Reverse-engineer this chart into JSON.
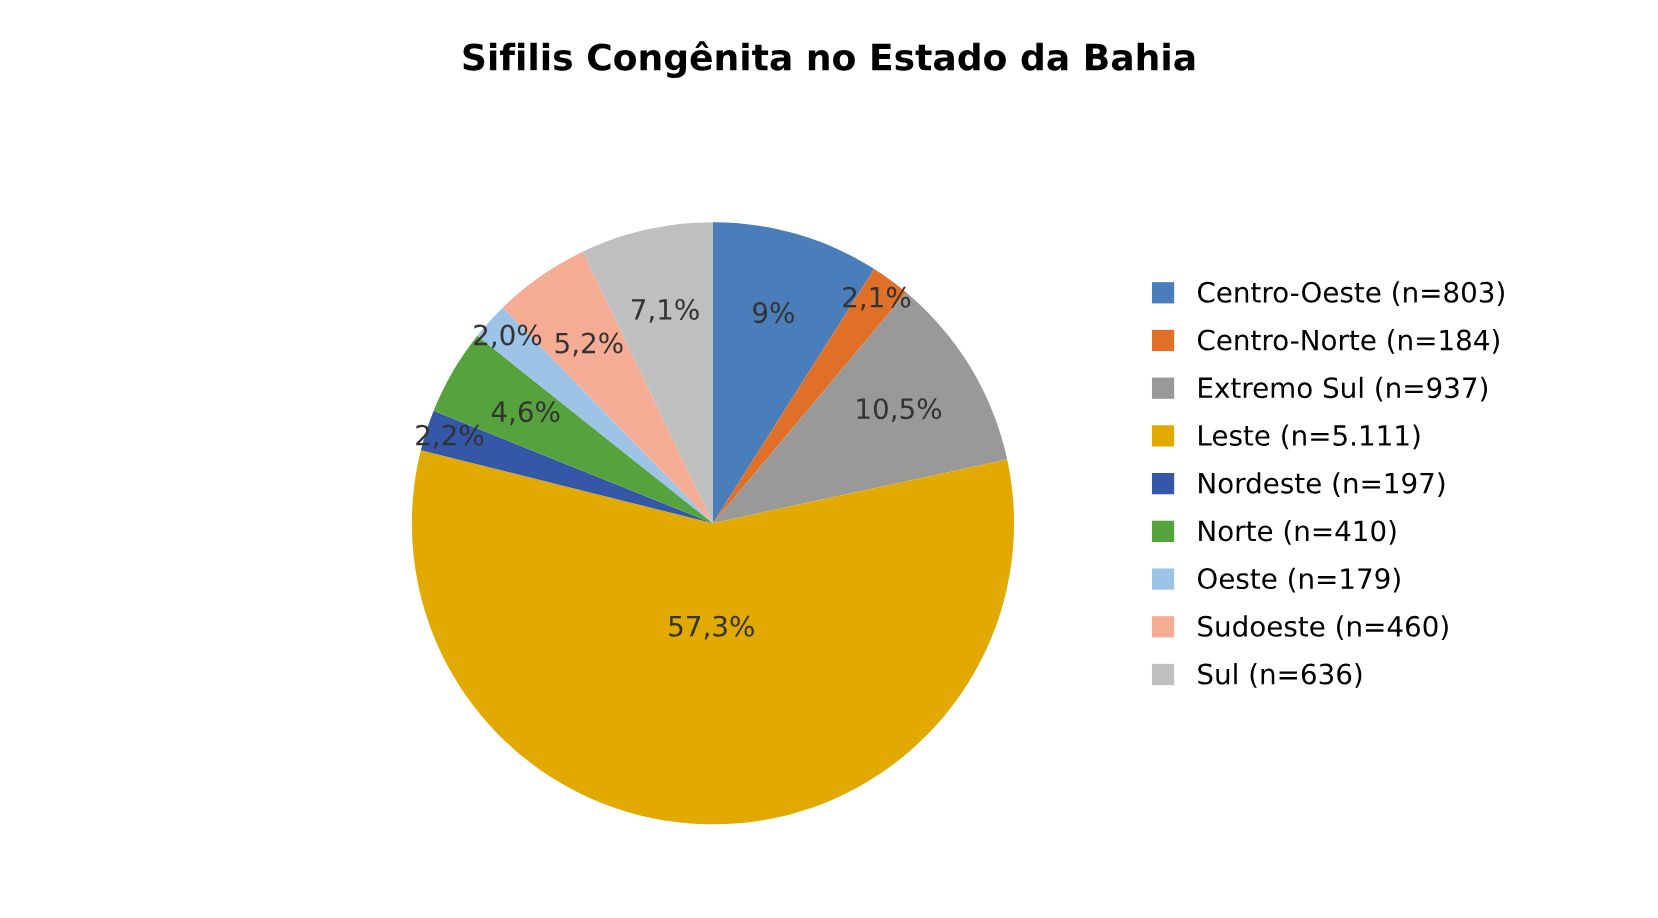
{
  "chart_data": {
    "type": "pie",
    "title": "Sifilis Congênita no Estado da Bahia",
    "categories": [
      "Centro-Oeste (n=803)",
      "Centro-Norte (n=184)",
      "Extremo Sul (n=937)",
      "Leste (n=5.111)",
      "Nordeste (n=197)",
      "Norte (n=410)",
      "Oeste (n=179)",
      "Sudoeste (n=460)",
      "Sul (n=636)"
    ],
    "values": [
      9,
      2.1,
      10.5,
      57.3,
      2.2,
      4.6,
      2.0,
      5.2,
      7.1
    ],
    "value_labels": [
      "9%",
      "2,1%",
      "10,5%",
      "57,3%",
      "2,2%",
      "4,6%",
      "2,0%",
      "5,2%",
      "7,1%"
    ],
    "colors": [
      "#4a7ebb",
      "#e07028",
      "#999999",
      "#e2aa00",
      "#3557a8",
      "#56a33e",
      "#9dc3e6",
      "#f4ad94",
      "#bfbfbf"
    ],
    "legend": "right"
  }
}
